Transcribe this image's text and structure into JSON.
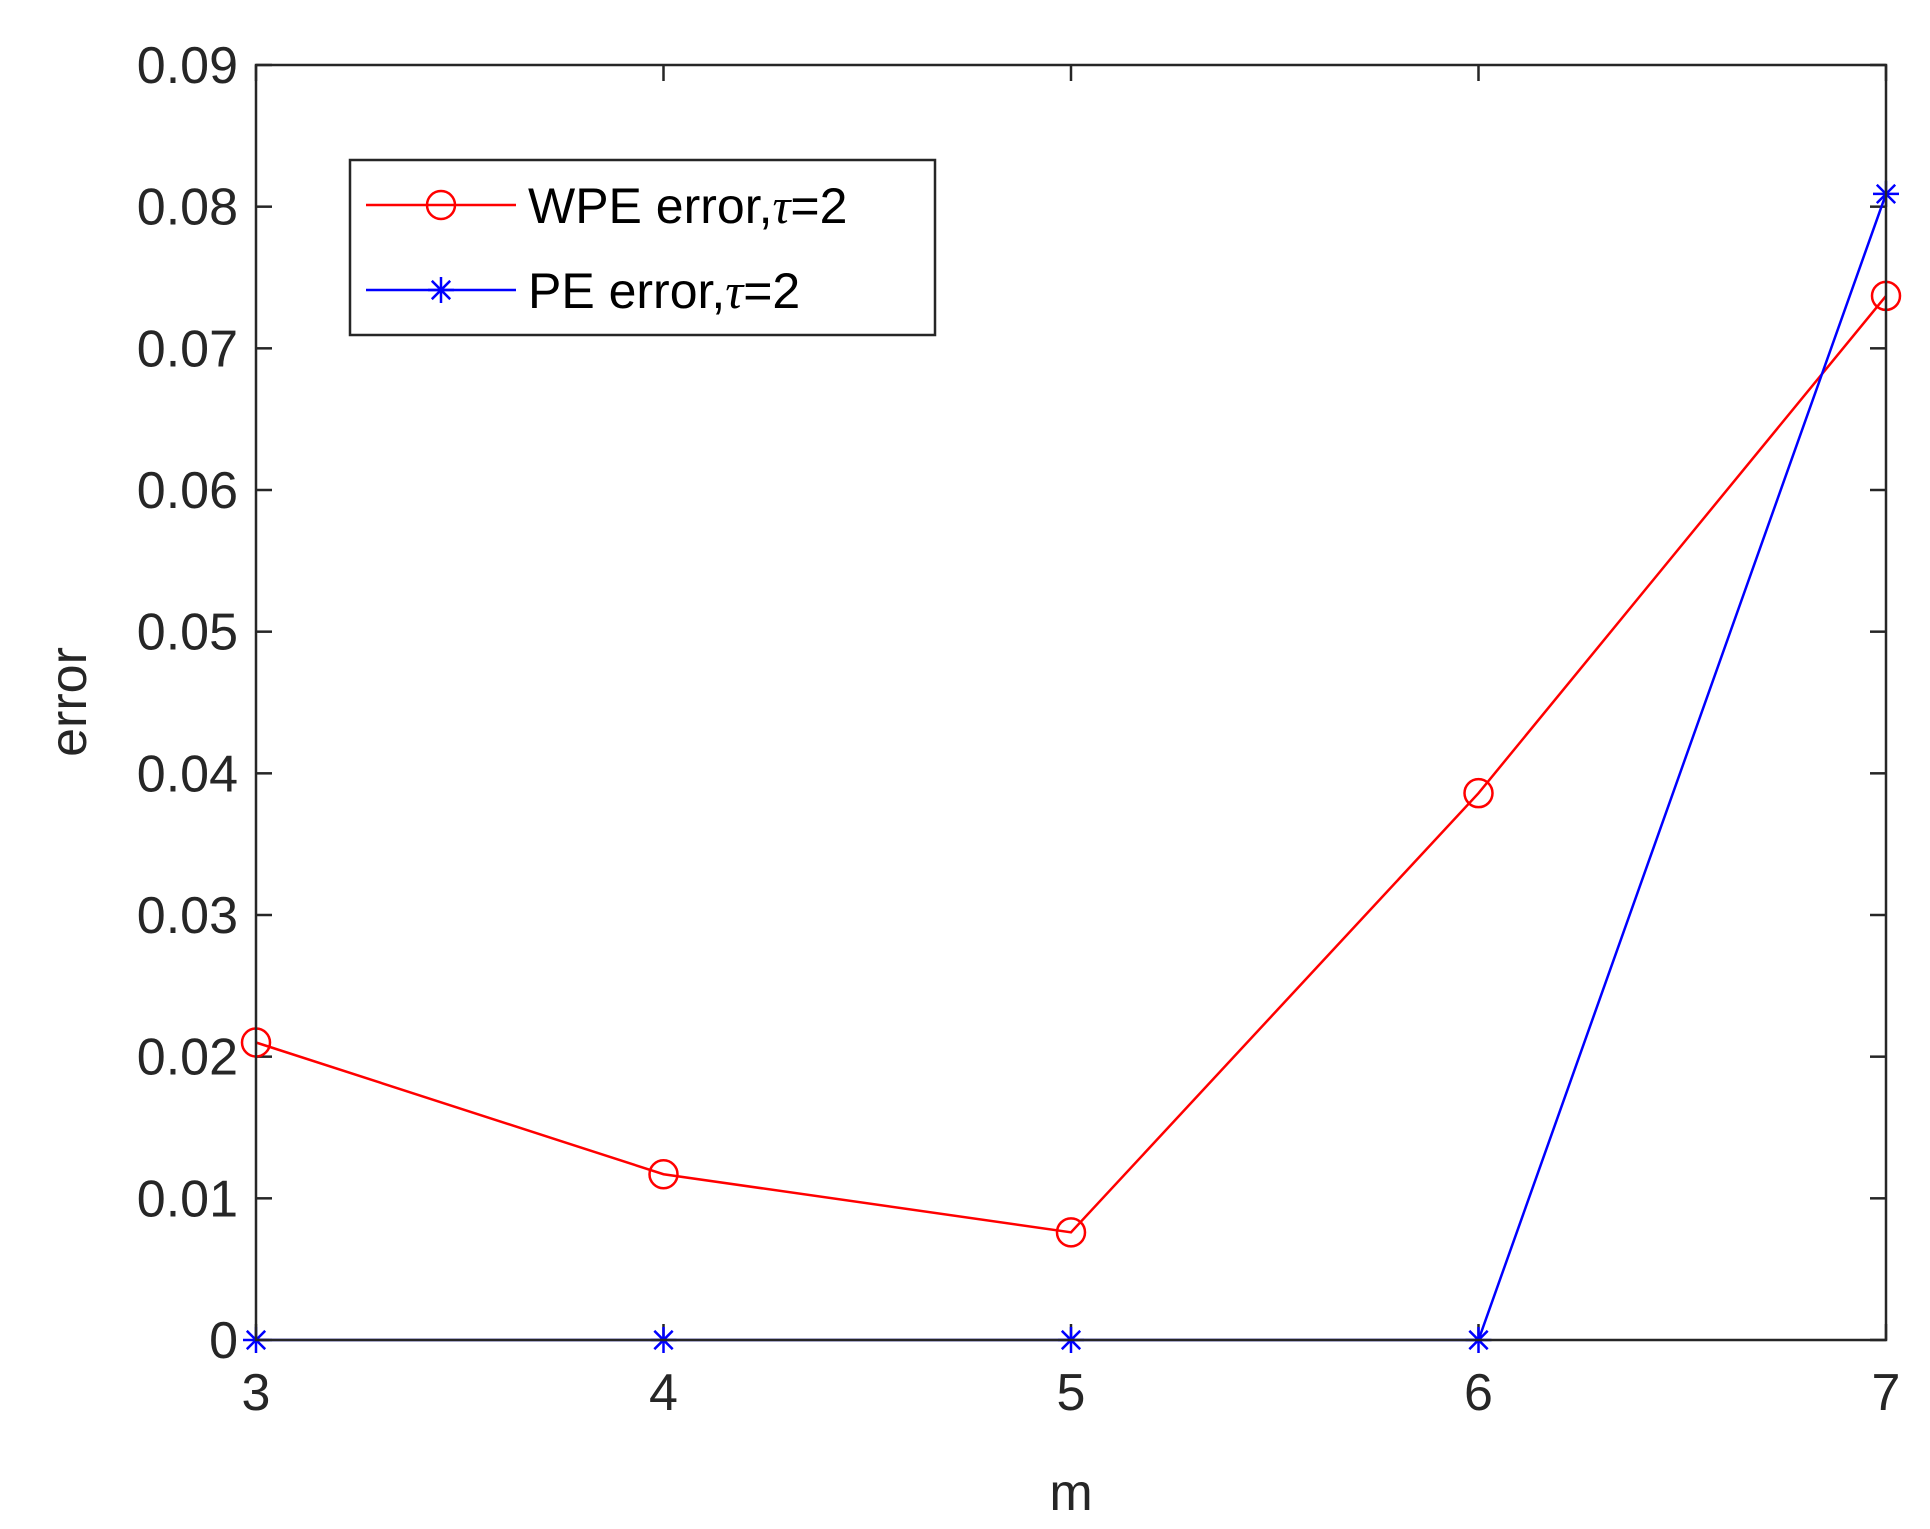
{
  "chart_data": {
    "type": "line",
    "title": "",
    "xlabel": "m",
    "ylabel": "error",
    "x": [
      3,
      4,
      5,
      6,
      7
    ],
    "xlim": [
      3,
      7
    ],
    "ylim": [
      0,
      0.09
    ],
    "xticks": [
      "3",
      "4",
      "5",
      "6",
      "7"
    ],
    "yticks": [
      "0",
      "0.01",
      "0.02",
      "0.03",
      "0.04",
      "0.05",
      "0.06",
      "0.07",
      "0.08",
      "0.09"
    ],
    "grid": false,
    "legend_position": "top-left",
    "series": [
      {
        "name_prefix": "WPE error,",
        "name_symbol": "τ",
        "name_suffix": "=2",
        "color": "#ff0000",
        "marker": "circle",
        "values": [
          0.021,
          0.0117,
          0.0076,
          0.0386,
          0.0737
        ]
      },
      {
        "name_prefix": "PE error,",
        "name_symbol": "τ",
        "name_suffix": "=2",
        "color": "#0000ff",
        "marker": "asterisk",
        "values": [
          0,
          0,
          0,
          0,
          0.0809
        ]
      }
    ]
  }
}
